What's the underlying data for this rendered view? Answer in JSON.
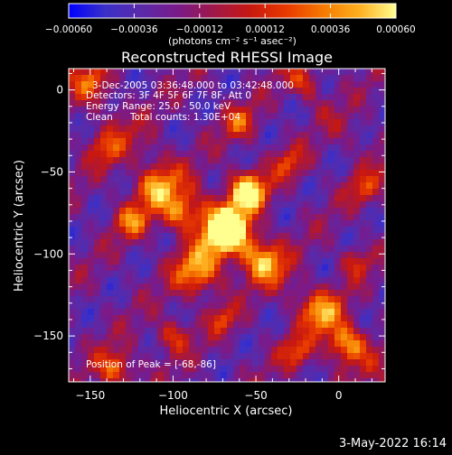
{
  "chart_data": {
    "type": "heatmap",
    "title": "Reconstructed RHESSI Image",
    "xlabel": "Heliocentric X (arcsec)",
    "ylabel": "Heliocentric Y (arcsec)",
    "xlim": [
      -163,
      28
    ],
    "ylim": [
      -178,
      13
    ],
    "x_ticks": [
      -150,
      -100,
      -50,
      0
    ],
    "x_tick_labels": [
      "−150",
      "−100",
      "−50",
      "0"
    ],
    "y_ticks": [
      0,
      -50,
      -100,
      -150
    ],
    "y_tick_labels": [
      "0",
      "−50",
      "−100",
      "−150"
    ],
    "colorbar": {
      "range": [
        -0.0006,
        0.0006
      ],
      "ticks": [
        -0.0006,
        -0.00036,
        -0.00012,
        0.00012,
        0.00036,
        0.0006
      ],
      "tick_labels": [
        "−0.00060",
        "−0.00036",
        "−0.00012",
        "0.00012",
        "0.00036",
        "0.00060"
      ],
      "unit_label": "(photons cm⁻² s⁻¹ asec⁻²)",
      "colormap": [
        "#0000ff",
        "#3a30c8",
        "#5a2aa8",
        "#7a1a8a",
        "#a01848",
        "#c81810",
        "#e83a00",
        "#f57a00",
        "#ffb020",
        "#ffff90"
      ]
    },
    "annotations": {
      "time_range": "3-Dec-2005 03:36:48.000 to 03:42:48.000",
      "detectors": "Detectors: 3F 4F 5F 6F 7F 8F, Att 0",
      "energy": "Energy Range: 25.0 - 50.0 keV",
      "clean": "Clean",
      "total_counts": "Total counts: 1.30E+04",
      "peak": "Position of Peak = [-68,-86]"
    },
    "peak": [
      -68,
      -86
    ],
    "footer_date": "3-May-2022 16:14"
  }
}
